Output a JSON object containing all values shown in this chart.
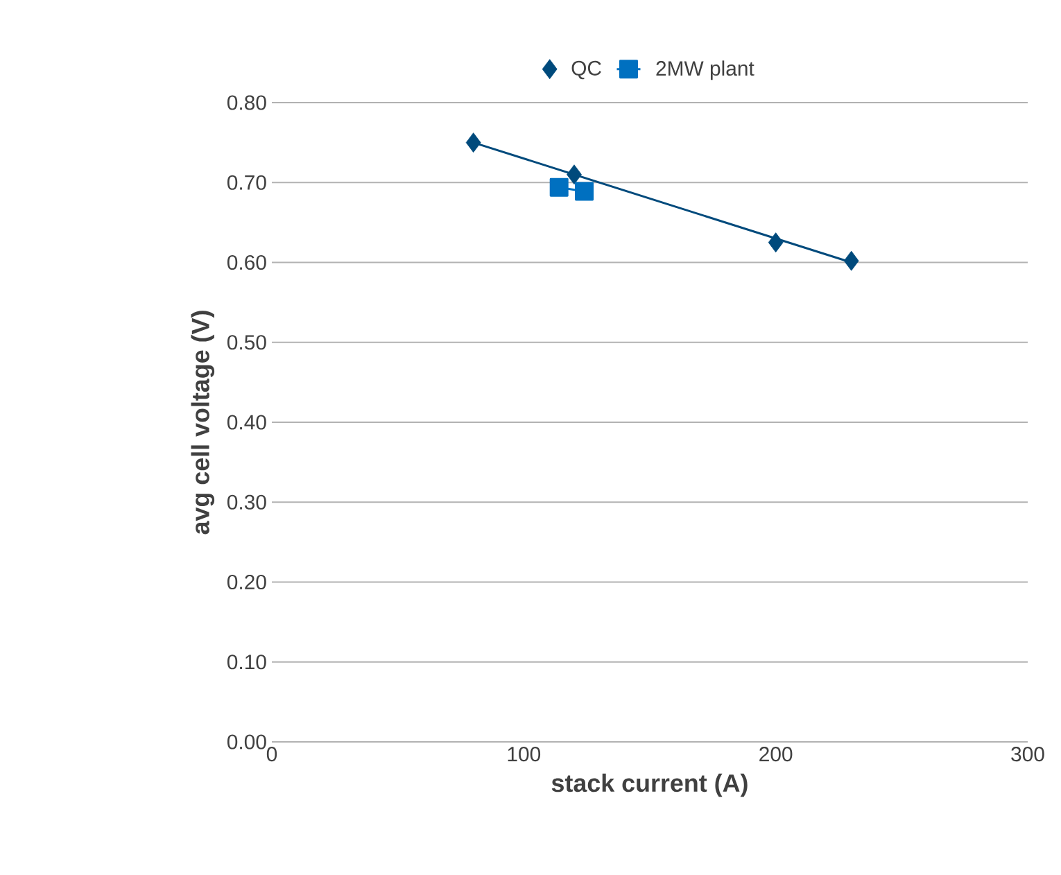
{
  "chart_data": {
    "type": "scatter",
    "xlabel": "stack current (A)",
    "ylabel": "avg cell voltage (V)",
    "xlim": [
      0,
      300
    ],
    "xticks": [
      0,
      100,
      200,
      300
    ],
    "ylim": [
      0,
      0.8
    ],
    "yticks": [
      {
        "value": 0,
        "label": "0.00"
      },
      {
        "value": 0.1,
        "label": "0.10"
      },
      {
        "value": 0.2,
        "label": "0.20"
      },
      {
        "value": 0.3,
        "label": "0.30"
      },
      {
        "value": 0.4,
        "label": "0.40"
      },
      {
        "value": 0.5,
        "label": "0.50"
      },
      {
        "value": 0.6,
        "label": "0.60"
      },
      {
        "value": 0.7,
        "label": "0.70"
      },
      {
        "value": 0.8,
        "label": "0.80"
      }
    ],
    "grid": "y",
    "legend": "top",
    "series": [
      {
        "type": "line",
        "color": "#004a7c",
        "marker": "none",
        "x": [
          80,
          230
        ],
        "values": [
          0.75,
          0.6
        ]
      },
      {
        "name": "QC",
        "color": "#004a7c",
        "marker": "diamond",
        "x": [
          80,
          120,
          200,
          230
        ],
        "values": [
          0.75,
          0.71,
          0.625,
          0.602
        ]
      },
      {
        "name": "2MW plant",
        "type": "line",
        "color": "#0070c0",
        "marker": "square",
        "x": [
          114,
          124
        ],
        "values": [
          0.694,
          0.689
        ]
      }
    ]
  }
}
